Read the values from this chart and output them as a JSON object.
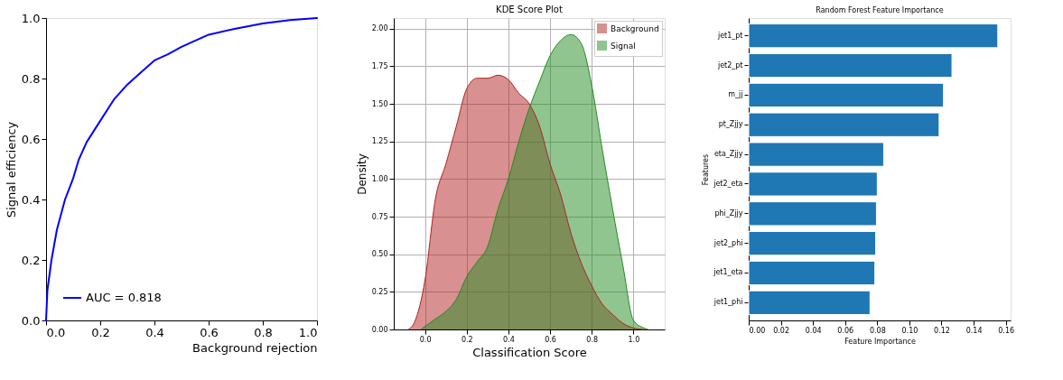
{
  "chart_data": [
    {
      "type": "line",
      "xlabel": "Background rejection",
      "ylabel": "Signal efficiency",
      "xlim": [
        0,
        1
      ],
      "ylim": [
        0,
        1
      ],
      "xticks": [
        {
          "value": 0,
          "label": "0.0"
        },
        {
          "value": 0.2,
          "label": "0.2"
        },
        {
          "value": 0.4,
          "label": "0.4"
        },
        {
          "value": 0.6,
          "label": "0.6"
        },
        {
          "value": 0.8,
          "label": "0.8"
        },
        {
          "value": 1,
          "label": "1.0"
        }
      ],
      "yticks": [
        {
          "value": 0,
          "label": "0.0"
        },
        {
          "value": 0.2,
          "label": "0.2"
        },
        {
          "value": 0.4,
          "label": "0.4"
        },
        {
          "value": 0.6,
          "label": "0.6"
        },
        {
          "value": 0.8,
          "label": "0.8"
        },
        {
          "value": 1,
          "label": "1.0"
        }
      ],
      "grid": false,
      "legend": "bottom left",
      "series": [
        {
          "name": "AUC = 0.818",
          "color": "#0000ff",
          "x": [
            0,
            0.005,
            0.02,
            0.04,
            0.07,
            0.1,
            0.12,
            0.15,
            0.2,
            0.25,
            0.3,
            0.35,
            0.4,
            0.45,
            0.5,
            0.55,
            0.6,
            0.7,
            0.8,
            0.9,
            1.0
          ],
          "values": [
            0,
            0.1,
            0.2,
            0.3,
            0.4,
            0.47,
            0.53,
            0.59,
            0.66,
            0.73,
            0.78,
            0.82,
            0.86,
            0.88,
            0.905,
            0.925,
            0.945,
            0.965,
            0.982,
            0.993,
            1.0
          ]
        }
      ]
    },
    {
      "type": "area",
      "title": "KDE Score Plot",
      "xlabel": "Classification Score",
      "ylabel": "Density",
      "xlim": [
        -0.15,
        1.15
      ],
      "ylim": [
        0,
        2.07
      ],
      "xticks": [
        {
          "value": 0,
          "label": "0.0"
        },
        {
          "value": 0.2,
          "label": "0.2"
        },
        {
          "value": 0.4,
          "label": "0.4"
        },
        {
          "value": 0.6,
          "label": "0.6"
        },
        {
          "value": 0.8,
          "label": "0.8"
        },
        {
          "value": 1,
          "label": "1.0"
        }
      ],
      "yticks": [
        {
          "value": 0,
          "label": "0.00"
        },
        {
          "value": 0.25,
          "label": "0.25"
        },
        {
          "value": 0.5,
          "label": "0.50"
        },
        {
          "value": 0.75,
          "label": "0.75"
        },
        {
          "value": 1,
          "label": "1.00"
        },
        {
          "value": 1.25,
          "label": "1.25"
        },
        {
          "value": 1.5,
          "label": "1.50"
        },
        {
          "value": 1.75,
          "label": "1.75"
        },
        {
          "value": 2,
          "label": "2.00"
        }
      ],
      "grid": true,
      "legend": "top right",
      "series": [
        {
          "name": "Background",
          "color": "#b22222",
          "x": [
            -0.08,
            -0.05,
            0,
            0.05,
            0.1,
            0.15,
            0.2,
            0.25,
            0.3,
            0.35,
            0.4,
            0.45,
            0.5,
            0.55,
            0.6,
            0.65,
            0.7,
            0.75,
            0.8,
            0.85,
            0.9,
            0.95,
            1.0,
            1.05
          ],
          "values": [
            0,
            0.05,
            0.33,
            0.87,
            1.1,
            1.35,
            1.6,
            1.67,
            1.67,
            1.69,
            1.66,
            1.57,
            1.5,
            1.35,
            1.1,
            0.9,
            0.64,
            0.44,
            0.29,
            0.17,
            0.1,
            0.04,
            0.01,
            0
          ]
        },
        {
          "name": "Signal",
          "color": "#228b22",
          "x": [
            -0.02,
            0,
            0.05,
            0.1,
            0.15,
            0.2,
            0.25,
            0.3,
            0.35,
            0.4,
            0.45,
            0.5,
            0.55,
            0.6,
            0.65,
            0.7,
            0.75,
            0.8,
            0.85,
            0.9,
            0.95,
            1.0,
            1.05,
            1.07
          ],
          "values": [
            0,
            0.02,
            0.07,
            0.12,
            0.2,
            0.35,
            0.45,
            0.55,
            0.8,
            1.0,
            1.25,
            1.47,
            1.65,
            1.82,
            1.92,
            1.96,
            1.9,
            1.62,
            1.2,
            0.8,
            0.42,
            0.06,
            0.01,
            0
          ]
        }
      ]
    },
    {
      "type": "bar",
      "orientation": "horizontal",
      "title": "Random Forest Feature Importance",
      "xlabel": "Feature Importance",
      "ylabel": "Features",
      "categories": [
        "jet1_pt",
        "jet2_pt",
        "m_jj",
        "pt_Zjjy",
        "eta_Zjjy",
        "jet2_eta",
        "phi_Zjjy",
        "jet2_phi",
        "jet1_eta",
        "jet1_phi"
      ],
      "xlim": [
        0,
        0.163
      ],
      "xticks": [
        {
          "value": 0,
          "label": "0.00"
        },
        {
          "value": 0.02,
          "label": "0.02"
        },
        {
          "value": 0.04,
          "label": "0.04"
        },
        {
          "value": 0.06,
          "label": "0.06"
        },
        {
          "value": 0.08,
          "label": "0.08"
        },
        {
          "value": 0.1,
          "label": "0.10"
        },
        {
          "value": 0.12,
          "label": "0.12"
        },
        {
          "value": 0.14,
          "label": "0.14"
        },
        {
          "value": 0.16,
          "label": "0.16"
        }
      ],
      "grid": false,
      "series": [
        {
          "color": "#1f77b4",
          "values": [
            0.155,
            0.1265,
            0.1212,
            0.1185,
            0.084,
            0.08,
            0.0795,
            0.079,
            0.0785,
            0.0755
          ]
        }
      ]
    }
  ]
}
